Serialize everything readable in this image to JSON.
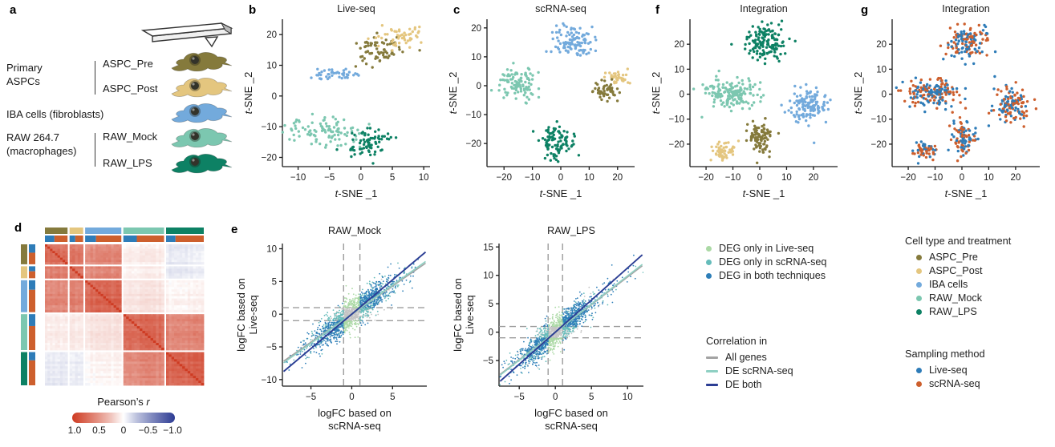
{
  "panels": {
    "a": {
      "letter": "a"
    },
    "b": {
      "letter": "b"
    },
    "c": {
      "letter": "c"
    },
    "d": {
      "letter": "d"
    },
    "e": {
      "letter": "e"
    },
    "f": {
      "letter": "f"
    },
    "g": {
      "letter": "g"
    }
  },
  "colors": {
    "aspc_pre": "#857a3c",
    "aspc_post": "#e4c67f",
    "iba": "#73aadc",
    "raw_mock": "#7cc7b0",
    "raw_lps": "#0d8164",
    "live_seq": "#2e7cb8",
    "scrna_seq": "#cd5f2d",
    "deg_liveseq": "#abd9a5",
    "deg_scrnaseq": "#65bcba",
    "deg_both": "#2d7eb8",
    "nonsig": "#c4c4c4",
    "line_gray": "#a3a3a3",
    "line_teal": "#8fd0c3",
    "line_navy": "#2c3e94",
    "heat_pos": "#ce3b22",
    "heat_neg": "#2d3c94",
    "axis": "#1a1a1a"
  },
  "panel_a": {
    "groups": [
      {
        "lines": [
          "Primary",
          "ASPCs"
        ]
      },
      {
        "lines": [
          "IBA cells (fibroblasts)"
        ]
      },
      {
        "lines": [
          "RAW 264.7",
          "(macrophages)"
        ]
      }
    ],
    "members": [
      {
        "label": "ASPC_Pre",
        "color": "aspc_pre"
      },
      {
        "label": "ASPC_Post",
        "color": "aspc_post"
      },
      {
        "label": "RAW_Mock",
        "color": "raw_mock"
      },
      {
        "label": "RAW_LPS",
        "color": "raw_lps"
      }
    ]
  },
  "legend_deg": {
    "items": [
      {
        "label": "DEG only in Live-seq",
        "color": "deg_liveseq"
      },
      {
        "label": "DEG only in scRNA-seq",
        "color": "deg_scrnaseq"
      },
      {
        "label": "DEG in both techniques",
        "color": "deg_both"
      }
    ]
  },
  "legend_correlation": {
    "title": "Correlation in",
    "items": [
      {
        "label": "All genes",
        "color": "line_gray"
      },
      {
        "label": "DE scRNA-seq",
        "color": "line_teal"
      },
      {
        "label": "DE both",
        "color": "line_navy"
      }
    ]
  },
  "legend_celltype": {
    "title": "Cell type and treatment",
    "items": [
      {
        "label": "ASPC_Pre",
        "color": "aspc_pre"
      },
      {
        "label": "ASPC_Post",
        "color": "aspc_post"
      },
      {
        "label": "IBA cells",
        "color": "iba"
      },
      {
        "label": "RAW_Mock",
        "color": "raw_mock"
      },
      {
        "label": "RAW_LPS",
        "color": "raw_lps"
      }
    ]
  },
  "legend_sampling": {
    "title": "Sampling method",
    "items": [
      {
        "label": "Live-seq",
        "color": "live_seq"
      },
      {
        "label": "scRNA-seq",
        "color": "scrna_seq"
      }
    ]
  },
  "chart_data": [
    {
      "id": "tsne_liveseq",
      "type": "scatter",
      "panel": "b",
      "title": "Live-seq",
      "xlabel": "t-SNE _1",
      "ylabel": "t-SNE _2",
      "xlim": [
        -12.5,
        11
      ],
      "ylim": [
        -23,
        25
      ],
      "xticks": [
        -10,
        -5,
        0,
        5,
        10
      ],
      "yticks": [
        -20,
        -10,
        0,
        10,
        20
      ],
      "clusters": [
        {
          "name": "ASPC_Pre",
          "color": "aspc_pre",
          "cx": 3.2,
          "cy": 15,
          "sx": 1.9,
          "sy": 2.4,
          "n": 70
        },
        {
          "name": "ASPC_Post",
          "color": "aspc_post",
          "cx": 5.8,
          "cy": 19.5,
          "sx": 2.0,
          "sy": 1.6,
          "n": 50
        },
        {
          "name": "IBA cells",
          "color": "iba",
          "cx": -3.5,
          "cy": 7,
          "sx": 1.8,
          "sy": 1.0,
          "n": 42
        },
        {
          "name": "RAW_Mock",
          "color": "raw_mock",
          "cx": -5.5,
          "cy": -11,
          "sx": 3.2,
          "sy": 2.6,
          "n": 100
        },
        {
          "name": "RAW_LPS",
          "color": "raw_lps",
          "cx": 0.8,
          "cy": -15.5,
          "sx": 1.5,
          "sy": 3.0,
          "n": 60
        },
        {
          "name": "RAW_LPS",
          "color": "raw_lps",
          "cx": 3.8,
          "cy": -13.8,
          "sx": 1.6,
          "sy": 0.5,
          "n": 12
        }
      ]
    },
    {
      "id": "tsne_scrnaseq",
      "type": "scatter",
      "panel": "c",
      "title": "scRNA-seq",
      "xlabel": "t-SNE _1",
      "ylabel": "t-SNE _2",
      "xlim": [
        -26,
        26
      ],
      "ylim": [
        -28,
        23
      ],
      "xticks": [
        -20,
        -10,
        0,
        10,
        20
      ],
      "yticks": [
        -20,
        -10,
        0,
        10,
        20
      ],
      "clusters": [
        {
          "name": "IBA cells",
          "color": "iba",
          "cx": 4,
          "cy": 15.5,
          "sx": 3.8,
          "sy": 2.5,
          "n": 105
        },
        {
          "name": "RAW_Mock",
          "color": "raw_mock",
          "cx": -15,
          "cy": 1.5,
          "sx": 3.4,
          "sy": 3.2,
          "n": 100
        },
        {
          "name": "ASPC_Post",
          "color": "aspc_post",
          "cx": 19.5,
          "cy": 2.8,
          "sx": 2.0,
          "sy": 1.0,
          "n": 38
        },
        {
          "name": "ASPC_Pre",
          "color": "aspc_pre",
          "cx": 16,
          "cy": -1.8,
          "sx": 2.2,
          "sy": 1.8,
          "n": 52
        },
        {
          "name": "RAW_LPS",
          "color": "raw_lps",
          "cx": -1,
          "cy": -19.5,
          "sx": 3.2,
          "sy": 3.0,
          "n": 95
        }
      ]
    },
    {
      "id": "tsne_integration_celltype",
      "type": "scatter",
      "panel": "f",
      "title": "Integration",
      "xlabel": "t-SNE _1",
      "ylabel": "t-SNE _2",
      "xlim": [
        -26,
        29
      ],
      "ylim": [
        -29,
        30
      ],
      "xticks": [
        -20,
        -10,
        0,
        10,
        20
      ],
      "yticks": [
        -20,
        -10,
        0,
        10,
        20
      ],
      "clusters": [
        {
          "name": "RAW_LPS",
          "color": "raw_lps",
          "cx": 2,
          "cy": 20.5,
          "sx": 3.8,
          "sy": 3.6,
          "n": 140
        },
        {
          "name": "RAW_Mock",
          "color": "raw_mock",
          "cx": -11,
          "cy": 0.5,
          "sx": 5.2,
          "sy": 2.8,
          "n": 170
        },
        {
          "name": "IBA cells",
          "color": "iba",
          "cx": 18.5,
          "cy": -4.5,
          "sx": 3.8,
          "sy": 3.6,
          "n": 130
        },
        {
          "name": "ASPC_Pre",
          "color": "aspc_pre",
          "cx": 0.5,
          "cy": -18,
          "sx": 2.3,
          "sy": 3.6,
          "n": 90
        },
        {
          "name": "ASPC_Post",
          "color": "aspc_post",
          "cx": -13.5,
          "cy": -22.5,
          "sx": 2.6,
          "sy": 1.8,
          "n": 55
        }
      ]
    },
    {
      "id": "tsne_integration_sampling",
      "type": "scatter",
      "panel": "g",
      "title": "Integration",
      "xlabel": "t-SNE _1",
      "ylabel": "t-SNE _2",
      "xlim": [
        -26,
        29
      ],
      "ylim": [
        -29,
        30
      ],
      "xticks": [
        -20,
        -10,
        0,
        10,
        20
      ],
      "yticks": [
        -20,
        -10,
        0,
        10,
        20
      ],
      "mix_colors": [
        "live_seq",
        "scrna_seq"
      ],
      "clusters": [
        {
          "name": "RAW_LPS",
          "cx": 2,
          "cy": 20.5,
          "sx": 3.8,
          "sy": 3.6,
          "n": 140
        },
        {
          "name": "RAW_Mock",
          "cx": -11,
          "cy": 0.5,
          "sx": 5.2,
          "sy": 2.8,
          "n": 170
        },
        {
          "name": "IBA cells",
          "cx": 18.5,
          "cy": -4.5,
          "sx": 3.8,
          "sy": 3.6,
          "n": 130
        },
        {
          "name": "ASPC_Pre",
          "cx": 0.5,
          "cy": -18,
          "sx": 2.3,
          "sy": 3.6,
          "n": 90
        },
        {
          "name": "ASPC_Post",
          "cx": -13.5,
          "cy": -22.5,
          "sx": 2.6,
          "sy": 1.8,
          "n": 55
        }
      ]
    },
    {
      "id": "correlation_heatmap",
      "type": "heatmap",
      "panel": "d",
      "groups": [
        {
          "name": "ASPC_Pre",
          "color": "aspc_pre",
          "fraction": 0.15,
          "sampling_split": 0.42
        },
        {
          "name": "ASPC_Post",
          "color": "aspc_post",
          "fraction": 0.09,
          "sampling_split": 0.42
        },
        {
          "name": "IBA cells",
          "color": "iba",
          "fraction": 0.24,
          "sampling_split": 0.3
        },
        {
          "name": "RAW_Mock",
          "color": "raw_mock",
          "fraction": 0.27,
          "sampling_split": 0.33
        },
        {
          "name": "RAW_LPS",
          "color": "raw_lps",
          "fraction": 0.25,
          "sampling_split": 0.25
        }
      ],
      "block_means": [
        [
          0.7,
          0.62,
          0.55,
          0.06,
          -0.07
        ],
        [
          0.62,
          0.68,
          0.57,
          0.06,
          -0.07
        ],
        [
          0.55,
          0.57,
          0.74,
          0.1,
          0.03
        ],
        [
          0.06,
          0.06,
          0.1,
          0.72,
          0.55
        ],
        [
          -0.07,
          -0.07,
          0.03,
          0.55,
          0.76
        ]
      ],
      "colorbar": {
        "title": "Pearson’s",
        "title_italic": "r",
        "tick_labels": [
          "1.0",
          "0.5",
          "0",
          "−0.5",
          "−1.0"
        ],
        "range": [
          1.0,
          -1.0
        ]
      }
    },
    {
      "id": "logfc_raw_mock",
      "type": "scatter",
      "panel": "e",
      "title": "RAW_Mock",
      "xlabel_lines": [
        "logFC based on",
        "scRNA-seq"
      ],
      "ylabel_lines": [
        "logFC based on",
        "Live-seq"
      ],
      "xlim": [
        -8.5,
        9.2
      ],
      "ylim": [
        -11,
        10.8
      ],
      "xticks": [
        -5,
        0,
        5
      ],
      "yticks": [
        -10,
        -5,
        0,
        5,
        10
      ],
      "threshold": 1,
      "n_points": 1700,
      "x_sd": 2.4,
      "slope": 0.9,
      "noise_sd": 1.15,
      "lines": [
        {
          "name": "All genes",
          "slope": 0.86,
          "intercept": 0,
          "color": "line_gray"
        },
        {
          "name": "DE scRNA-seq",
          "slope": 0.89,
          "intercept": 0,
          "color": "line_teal"
        },
        {
          "name": "DE both",
          "slope": 1.05,
          "intercept": 0,
          "color": "line_navy"
        }
      ]
    },
    {
      "id": "logfc_raw_lps",
      "type": "scatter",
      "panel": "e",
      "title": "RAW_LPS",
      "xlabel_lines": [
        "logFC based on",
        "scRNA-seq"
      ],
      "ylabel_lines": [
        "logFC based on",
        "Live-seq"
      ],
      "xlim": [
        -7.8,
        12.2
      ],
      "ylim": [
        -9.5,
        15.6
      ],
      "xticks": [
        -5,
        0,
        5,
        10
      ],
      "yticks": [
        -5,
        0,
        5,
        10,
        15
      ],
      "threshold": 1,
      "n_points": 1700,
      "x_sd": 2.7,
      "slope": 1.0,
      "noise_sd": 1.25,
      "lines": [
        {
          "name": "All genes",
          "slope": 0.97,
          "intercept": 0,
          "color": "line_gray"
        },
        {
          "name": "DE scRNA-seq",
          "slope": 0.99,
          "intercept": 0,
          "color": "line_teal"
        },
        {
          "name": "DE both",
          "slope": 1.13,
          "intercept": 0,
          "color": "line_navy"
        }
      ]
    }
  ]
}
